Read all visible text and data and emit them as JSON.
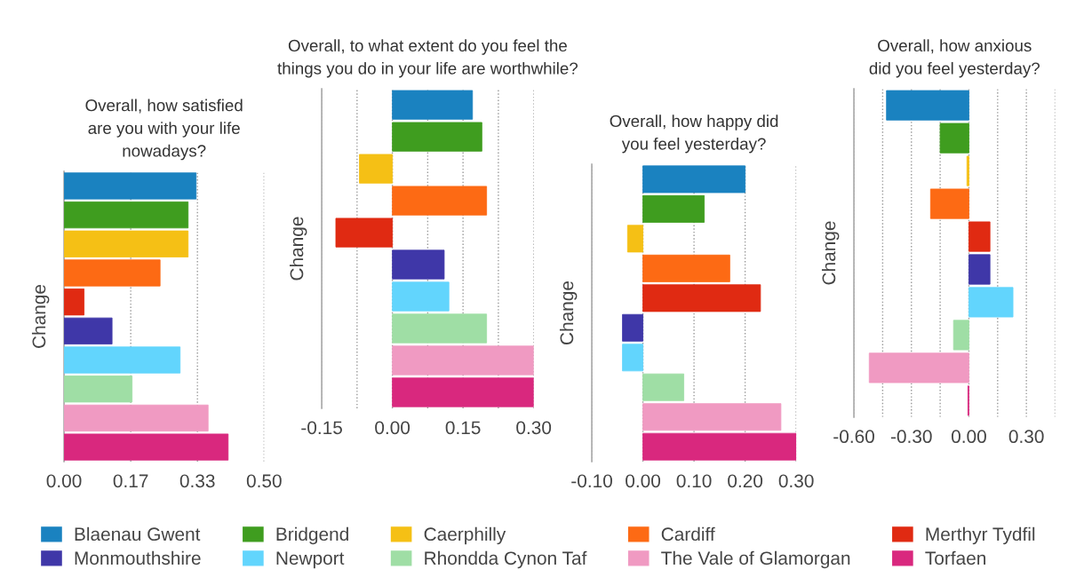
{
  "chart_data": [
    {
      "type": "bar",
      "orientation": "horizontal",
      "title": "Overall, how satisfied\nare you with your life\nnowadays?",
      "ylabel": "Change",
      "categories": [
        null
      ],
      "series": [
        {
          "name": "Blaenau Gwent",
          "color": "#1a82c0",
          "values": [
            0.33
          ]
        },
        {
          "name": "Bridgend",
          "color": "#3f9d1f",
          "values": [
            0.31
          ]
        },
        {
          "name": "Caerphilly",
          "color": "#f5c015",
          "values": [
            0.31
          ]
        },
        {
          "name": "Cardiff",
          "color": "#fd6a14",
          "values": [
            0.24
          ]
        },
        {
          "name": "Merthyr Tydfil",
          "color": "#e02a12",
          "values": [
            0.05
          ]
        },
        {
          "name": "Monmouthshire",
          "color": "#3f37a8",
          "values": [
            0.12
          ]
        },
        {
          "name": "Newport",
          "color": "#62d5fd",
          "values": [
            0.29
          ]
        },
        {
          "name": "Rhondda Cynon Taf",
          "color": "#9fdea5",
          "values": [
            0.17
          ]
        },
        {
          "name": "The Vale of Glamorgan",
          "color": "#f09ac2",
          "values": [
            0.36
          ]
        },
        {
          "name": "Torfaen",
          "color": "#d9287e",
          "values": [
            0.41
          ]
        }
      ],
      "xlim": [
        0,
        0.5
      ],
      "xticks": [
        {
          "value": 0,
          "label": "0.00"
        },
        {
          "value": 0.1667,
          "label": "0.17"
        },
        {
          "value": 0.3333,
          "label": "0.33"
        },
        {
          "value": 0.5,
          "label": "0.50"
        }
      ],
      "tick_labels": "x",
      "grid": "x",
      "legend": "bottom"
    },
    {
      "type": "bar",
      "orientation": "horizontal",
      "title": "Overall, to what extent do you feel the\nthings you do in your life are worthwhile?",
      "ylabel": "Change",
      "categories": [
        null
      ],
      "series": [
        {
          "color": "#1a82c0",
          "values": [
            0.17
          ]
        },
        {
          "color": "#3f9d1f",
          "values": [
            0.19
          ]
        },
        {
          "color": "#f5c015",
          "values": [
            -0.07
          ]
        },
        {
          "color": "#fd6a14",
          "values": [
            0.2
          ]
        },
        {
          "color": "#e02a12",
          "values": [
            -0.12
          ]
        },
        {
          "color": "#3f37a8",
          "values": [
            0.11
          ]
        },
        {
          "color": "#62d5fd",
          "values": [
            0.12
          ]
        },
        {
          "color": "#9fdea5",
          "values": [
            0.2
          ]
        },
        {
          "color": "#f09ac2",
          "values": [
            0.3
          ]
        },
        {
          "color": "#d9287e",
          "values": [
            0.3
          ]
        }
      ],
      "xlim": [
        -0.15,
        0.3
      ],
      "xticks": [
        -0.15,
        {
          "value": -0.075,
          "label": null
        },
        {
          "value": 0,
          "label": "0.00"
        },
        {
          "value": 0.075,
          "label": null
        },
        0.15,
        {
          "value": 0.225,
          "label": null
        },
        {
          "value": 0.3,
          "label": "0.30"
        }
      ],
      "tick_labels": "x",
      "grid": "x"
    },
    {
      "type": "bar",
      "orientation": "horizontal",
      "title": "Overall, how happy did\nyou feel yesterday?",
      "ylabel": "Change",
      "categories": [
        null
      ],
      "series": [
        {
          "color": "#1a82c0",
          "values": [
            0.2
          ]
        },
        {
          "color": "#3f9d1f",
          "values": [
            0.12
          ]
        },
        {
          "color": "#f5c015",
          "values": [
            -0.03
          ]
        },
        {
          "color": "#fd6a14",
          "values": [
            0.17
          ]
        },
        {
          "color": "#e02a12",
          "values": [
            0.23
          ]
        },
        {
          "color": "#3f37a8",
          "values": [
            -0.04
          ]
        },
        {
          "color": "#62d5fd",
          "values": [
            -0.04
          ]
        },
        {
          "color": "#9fdea5",
          "values": [
            0.08
          ]
        },
        {
          "color": "#f09ac2",
          "values": [
            0.27
          ]
        },
        {
          "color": "#d9287e",
          "values": [
            0.3
          ]
        }
      ],
      "xlim": [
        -0.1,
        0.3
      ],
      "xticks": [
        {
          "value": -0.1,
          "label": "-0.10"
        },
        {
          "value": 0,
          "label": "0.00"
        },
        {
          "value": 0.1,
          "label": "0.10"
        },
        {
          "value": 0.2,
          "label": "0.20"
        },
        {
          "value": 0.3,
          "label": "0.30"
        }
      ],
      "tick_labels": "x",
      "grid": "x"
    },
    {
      "type": "bar",
      "orientation": "horizontal",
      "title": "Overall, how anxious\ndid you feel yesterday?",
      "ylabel": "Change",
      "categories": [
        null
      ],
      "series": [
        {
          "color": "#1a82c0",
          "values": [
            -0.43
          ]
        },
        {
          "color": "#3f9d1f",
          "values": [
            -0.15
          ]
        },
        {
          "color": "#f5c015",
          "values": [
            -0.01
          ]
        },
        {
          "color": "#fd6a14",
          "values": [
            -0.2
          ]
        },
        {
          "color": "#e02a12",
          "values": [
            0.11
          ]
        },
        {
          "color": "#3f37a8",
          "values": [
            0.11
          ]
        },
        {
          "color": "#62d5fd",
          "values": [
            0.23
          ]
        },
        {
          "color": "#9fdea5",
          "values": [
            -0.08
          ]
        },
        {
          "color": "#f09ac2",
          "values": [
            -0.52
          ]
        },
        {
          "color": "#d9287e",
          "values": [
            -0.005
          ]
        }
      ],
      "xlim": [
        -0.6,
        0.45
      ],
      "xticks": [
        {
          "value": -0.6,
          "label": "-0.60"
        },
        {
          "value": -0.45,
          "label": null
        },
        {
          "value": -0.3,
          "label": "-0.30"
        },
        {
          "value": -0.15,
          "label": null
        },
        {
          "value": 0,
          "label": "0.00"
        },
        {
          "value": 0.15,
          "label": null
        },
        {
          "value": 0.3,
          "label": "0.30"
        },
        {
          "value": 0.45,
          "label": null
        }
      ],
      "tick_labels": "x",
      "grid": "x"
    }
  ]
}
